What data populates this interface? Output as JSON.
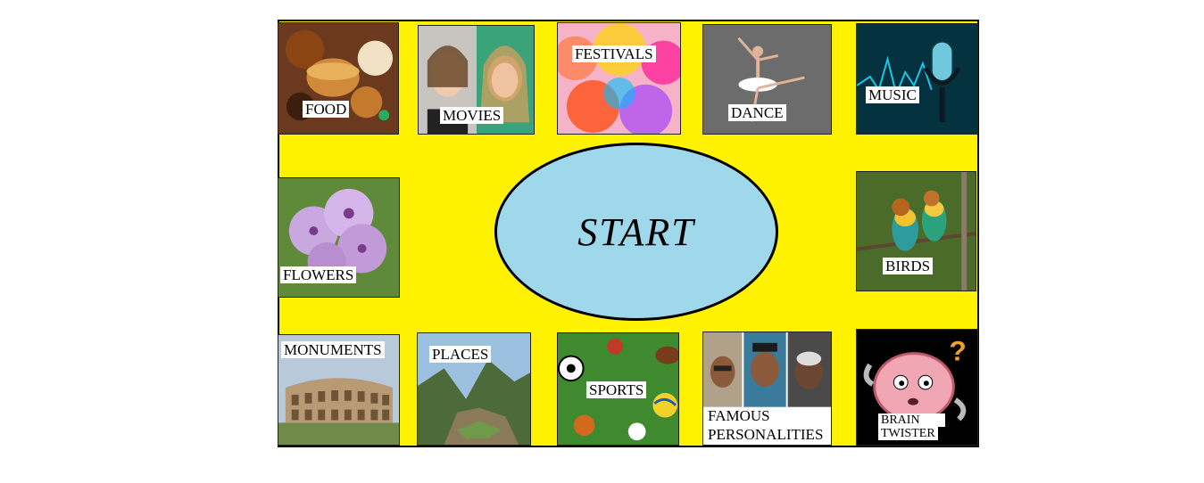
{
  "board": {
    "background": "#fff200",
    "start_fill": "#9ed8ea"
  },
  "start_label": "START",
  "tiles": {
    "food": {
      "label": "FOOD",
      "icon": "food-icon"
    },
    "movies": {
      "label": "MOVIES",
      "icon": "movie-icon"
    },
    "festivals": {
      "label": "FESTIVALS",
      "icon": "festival-icon"
    },
    "dance": {
      "label": "DANCE",
      "icon": "dancer-icon"
    },
    "music": {
      "label": "MUSIC",
      "icon": "microphone-icon"
    },
    "flowers": {
      "label": "FLOWERS",
      "icon": "flower-icon"
    },
    "birds": {
      "label": "BIRDS",
      "icon": "bird-icon"
    },
    "monuments": {
      "label": "MONUMENTS",
      "icon": "colosseum-icon"
    },
    "places": {
      "label": "PLACES",
      "icon": "mountain-icon"
    },
    "sports": {
      "label": "SPORTS",
      "icon": "ball-icon"
    },
    "famous": {
      "label_line1": "FAMOUS",
      "label_line2": "PERSONALITIES",
      "icon": "portrait-icon"
    },
    "brain": {
      "label_line1": "BRAIN",
      "label_line2": "TWISTER",
      "icon": "brain-icon"
    }
  }
}
